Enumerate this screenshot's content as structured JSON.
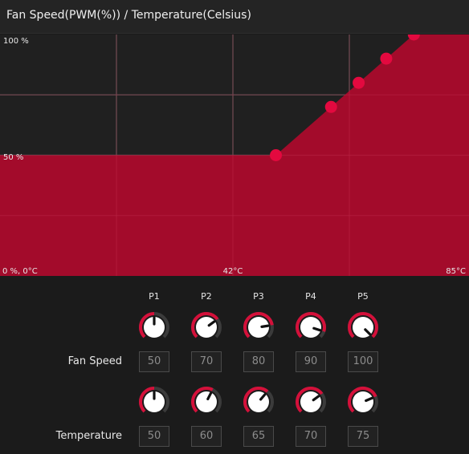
{
  "window": {
    "title": "Fan Speed(PWM(%)) / Temperature(Celsius)"
  },
  "chart_data": {
    "type": "area",
    "xlabel": "",
    "ylabel": "",
    "xlim": [
      0,
      85
    ],
    "ylim": [
      0,
      100
    ],
    "tick_labels": {
      "top_left": "100 %",
      "middle_left": "50 %",
      "origin": "0 %, 0°C",
      "mid_x": "42°C",
      "max_x": "85°C"
    },
    "points": [
      {
        "x": 50,
        "y": 50
      },
      {
        "x": 60,
        "y": 70
      },
      {
        "x": 65,
        "y": 80
      },
      {
        "x": 70,
        "y": 90
      },
      {
        "x": 75,
        "y": 100
      }
    ],
    "fill_color": "#ab0b2c",
    "point_color": "#e3093f",
    "grid": true
  },
  "controls": {
    "columns": [
      "P1",
      "P2",
      "P3",
      "P4",
      "P5"
    ],
    "fan_speed": {
      "label": "Fan Speed",
      "values": [
        "50",
        "70",
        "80",
        "90",
        "100"
      ]
    },
    "temperature": {
      "label": "Temperature",
      "values": [
        "50",
        "60",
        "65",
        "70",
        "75"
      ]
    }
  },
  "colors": {
    "accent": "#d4103a",
    "track": "#3b3b3b",
    "knob": "#ffffff"
  }
}
